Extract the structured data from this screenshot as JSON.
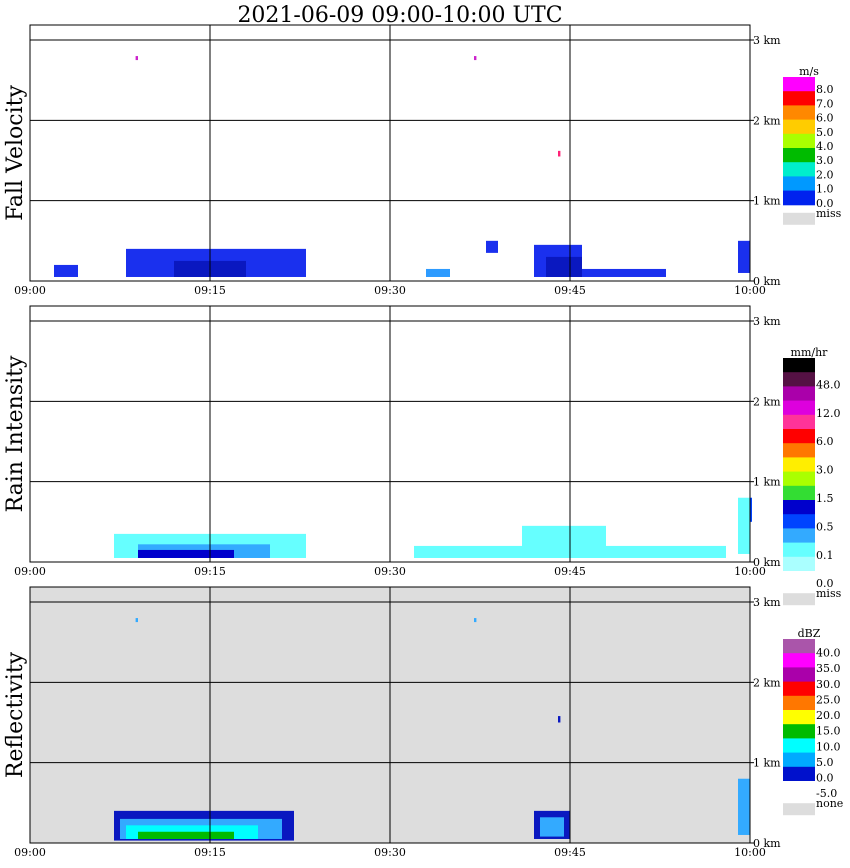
{
  "title": "2021-06-09   09:00-10:00 UTC",
  "x_ticks": [
    "09:00",
    "09:15",
    "09:30",
    "09:45",
    "10:00"
  ],
  "y_ticks": [
    "0 km",
    "1 km",
    "2 km",
    "3 km"
  ],
  "chart_data": [
    {
      "type": "heatmap",
      "ylabel": "Fall Velocity",
      "xlim": [
        "09:00",
        "10:00"
      ],
      "ylim_km": [
        0,
        3.15
      ],
      "grid": true,
      "legend": {
        "unit": "m/s",
        "labels": [
          "8.0",
          "7.0",
          "6.0",
          "5.0",
          "4.0",
          "3.0",
          "2.0",
          "1.0",
          "0.0"
        ],
        "colors": [
          "#ff00ff",
          "#ff0000",
          "#ff8800",
          "#ffcc00",
          "#aaff00",
          "#00bb00",
          "#00eecc",
          "#0099ff",
          "#0022ee"
        ],
        "miss_label": "miss",
        "miss_color": "#dddddd"
      },
      "blobs": [
        {
          "x": [
            "09:08",
            "09:23"
          ],
          "y": [
            0.05,
            0.4
          ],
          "color": "#1a30ee"
        },
        {
          "x": [
            "09:12",
            "09:18"
          ],
          "y": [
            0.05,
            0.25
          ],
          "color": "#0a18c0"
        },
        {
          "x": [
            "09:02",
            "09:04"
          ],
          "y": [
            0.05,
            0.2
          ],
          "color": "#1a30ee"
        },
        {
          "x": [
            "09:42",
            "09:46"
          ],
          "y": [
            0.05,
            0.45
          ],
          "color": "#1a30ee"
        },
        {
          "x": [
            "09:43",
            "09:46"
          ],
          "y": [
            0.05,
            0.3
          ],
          "color": "#0a18c0"
        },
        {
          "x": [
            "09:46",
            "09:53"
          ],
          "y": [
            0.05,
            0.15
          ],
          "color": "#1a30ee"
        },
        {
          "x": [
            "09:38",
            "09:39"
          ],
          "y": [
            0.35,
            0.5
          ],
          "color": "#1a30ee"
        },
        {
          "x": [
            "09:59",
            "10:00"
          ],
          "y": [
            0.1,
            0.5
          ],
          "color": "#1a30ee"
        },
        {
          "x": [
            "09:33",
            "09:35"
          ],
          "y": [
            0.05,
            0.15
          ],
          "color": "#2d9bff"
        },
        {
          "x": [
            "09:08.8",
            "09:09"
          ],
          "y": [
            2.75,
            2.8
          ],
          "color": "#cc22cc"
        },
        {
          "x": [
            "09:37",
            "09:37.2"
          ],
          "y": [
            2.75,
            2.8
          ],
          "color": "#cc22cc"
        },
        {
          "x": [
            "09:44",
            "09:44.2"
          ],
          "y": [
            1.55,
            1.62
          ],
          "color": "#ff2277"
        }
      ]
    },
    {
      "type": "heatmap",
      "ylabel": "Rain Intensity",
      "xlim": [
        "09:00",
        "10:00"
      ],
      "ylim_km": [
        0,
        3.15
      ],
      "grid": true,
      "legend": {
        "unit": "mm/hr",
        "labels": [
          "48.0",
          "12.0",
          "6.0",
          "3.0",
          "1.5",
          "0.5",
          "0.1",
          "0.0"
        ],
        "colors": [
          "#000000",
          "#551144",
          "#aa00aa",
          "#dd00dd",
          "#ff3399",
          "#ff0000",
          "#ff7700",
          "#ffee00",
          "#aaff00",
          "#33dd33",
          "#0000cc",
          "#0044ff",
          "#33aaff",
          "#66ffff",
          "#aaffff",
          "#ffffff"
        ],
        "miss_label": "miss",
        "miss_color": "#dddddd"
      },
      "blobs": [
        {
          "x": [
            "09:07",
            "09:23"
          ],
          "y": [
            0.05,
            0.35
          ],
          "color": "#66ffff"
        },
        {
          "x": [
            "09:09",
            "09:20"
          ],
          "y": [
            0.05,
            0.22
          ],
          "color": "#33aaff"
        },
        {
          "x": [
            "09:09",
            "09:17"
          ],
          "y": [
            0.05,
            0.15
          ],
          "color": "#0000cc"
        },
        {
          "x": [
            "09:32",
            "09:58"
          ],
          "y": [
            0.05,
            0.2
          ],
          "color": "#66ffff"
        },
        {
          "x": [
            "09:41",
            "09:48"
          ],
          "y": [
            0.05,
            0.45
          ],
          "color": "#66ffff"
        },
        {
          "x": [
            "09:59",
            "10:00"
          ],
          "y": [
            0.1,
            0.8
          ],
          "color": "#66ffff"
        },
        {
          "x": [
            "10:00",
            "10:00"
          ],
          "y": [
            0.5,
            0.8
          ],
          "color": "#0044ff"
        }
      ]
    },
    {
      "type": "heatmap",
      "ylabel": "Reflectivity",
      "xlim": [
        "09:00",
        "10:00"
      ],
      "ylim_km": [
        0,
        3.15
      ],
      "grid": true,
      "legend": {
        "unit": "dBZ",
        "labels": [
          "40.0",
          "35.0",
          "30.0",
          "25.0",
          "20.0",
          "15.0",
          "10.0",
          "5.0",
          "0.0",
          "-5.0"
        ],
        "colors": [
          "#aa55aa",
          "#ff00ff",
          "#aa00aa",
          "#ff0000",
          "#ff7700",
          "#ffff00",
          "#00bb00",
          "#00ffff",
          "#00aaff",
          "#0011cc",
          "#ffffff"
        ],
        "miss_label": "none",
        "miss_color": "#dddddd"
      },
      "blobs": [
        {
          "x": [
            "09:07",
            "09:22"
          ],
          "y": [
            0.03,
            0.4
          ],
          "color": "#0a18c0"
        },
        {
          "x": [
            "09:07.5",
            "09:21"
          ],
          "y": [
            0.05,
            0.3
          ],
          "color": "#33aaff"
        },
        {
          "x": [
            "09:08",
            "09:19"
          ],
          "y": [
            0.05,
            0.22
          ],
          "color": "#00ffff"
        },
        {
          "x": [
            "09:09",
            "09:17"
          ],
          "y": [
            0.05,
            0.14
          ],
          "color": "#00bb00"
        },
        {
          "x": [
            "09:42",
            "09:45"
          ],
          "y": [
            0.05,
            0.4
          ],
          "color": "#0a18c0"
        },
        {
          "x": [
            "09:42.5",
            "09:44.5"
          ],
          "y": [
            0.08,
            0.32
          ],
          "color": "#33aaff"
        },
        {
          "x": [
            "09:59",
            "10:00"
          ],
          "y": [
            0.1,
            0.8
          ],
          "color": "#33aaff"
        },
        {
          "x": [
            "09:08.8",
            "09:09"
          ],
          "y": [
            2.75,
            2.8
          ],
          "color": "#33aaff"
        },
        {
          "x": [
            "09:37",
            "09:37.2"
          ],
          "y": [
            2.75,
            2.8
          ],
          "color": "#33aaff"
        },
        {
          "x": [
            "09:44",
            "09:44.2"
          ],
          "y": [
            1.5,
            1.58
          ],
          "color": "#0a18c0"
        }
      ]
    }
  ]
}
